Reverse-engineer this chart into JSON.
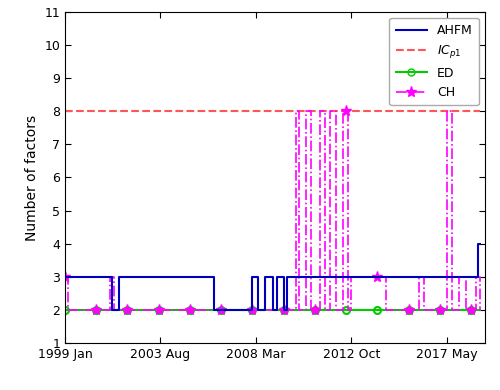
{
  "title": "",
  "ylabel": "Number of factors",
  "ylim": [
    1,
    11
  ],
  "yticks": [
    1,
    2,
    3,
    4,
    5,
    6,
    7,
    8,
    9,
    10,
    11
  ],
  "xlim_start": 1999.0,
  "xlim_end": 2019.17,
  "xtick_labels": [
    "1999 Jan",
    "2003 Aug",
    "2008 Mar",
    "2012 Oct",
    "2017 May"
  ],
  "xtick_positions": [
    1999.0,
    2003.583,
    2008.167,
    2012.75,
    2017.333
  ],
  "icp1_value": 8,
  "icp1_color": "#ff5555",
  "ahfm_color": "#0000bb",
  "ed_color": "#00cc00",
  "ch_color": "#ff00ff",
  "background_color": "#ffffff"
}
